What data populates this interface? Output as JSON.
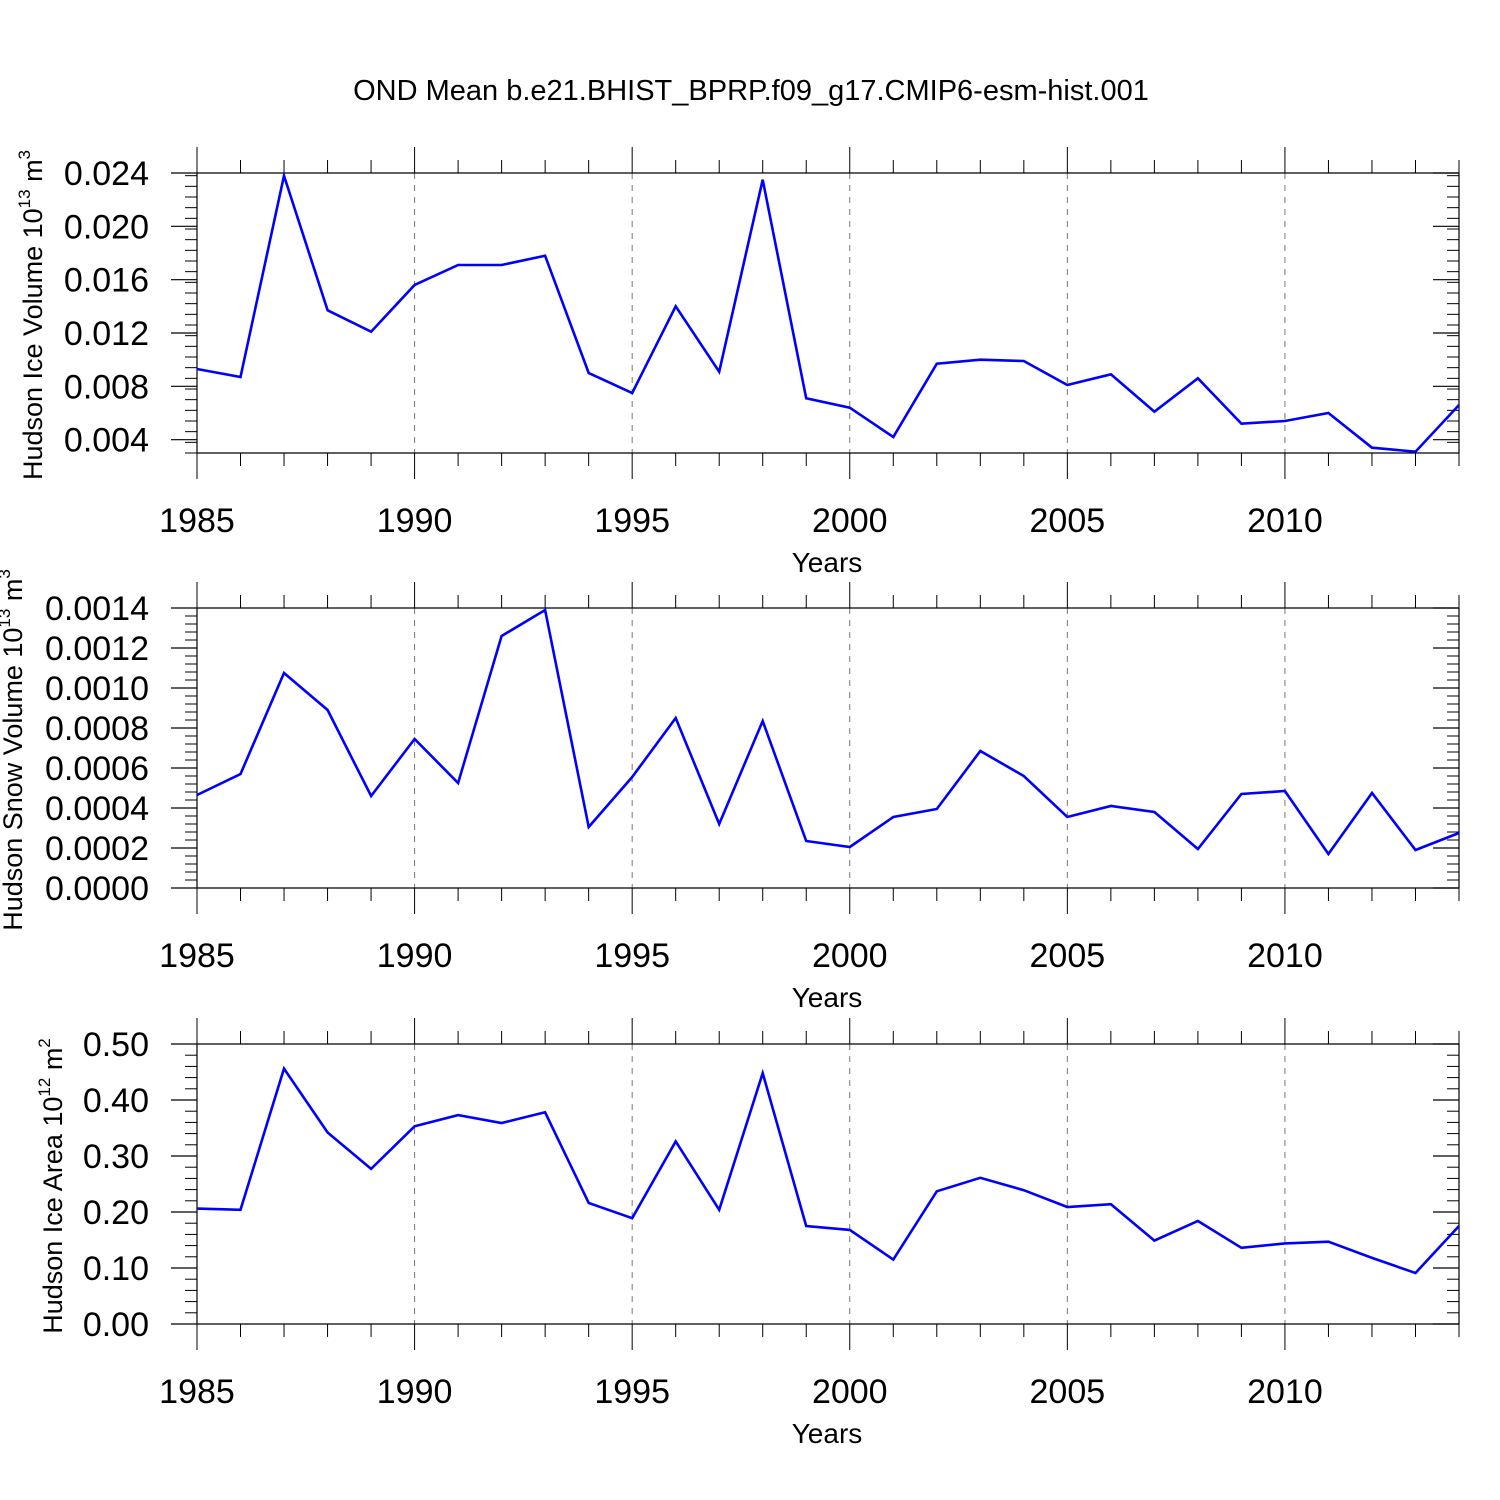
{
  "figure": {
    "title": "OND Mean b.e21.BHIST_BPRP.f09_g17.CMIP6-esm-hist.001"
  },
  "chart_data": [
    {
      "type": "line",
      "xlabel": "Years",
      "ylabel": {
        "text": "Hudson Ice Volume 10",
        "sup": "13",
        "unit": " m",
        "unit_sup": "3"
      },
      "xlim": [
        1985,
        2014
      ],
      "ylim": [
        0.003,
        0.024
      ],
      "xticks": [
        1985,
        1990,
        1995,
        2000,
        2005,
        2010
      ],
      "xtick_labels": [
        "1985",
        "1990",
        "1995",
        "2000",
        "2005",
        "2010"
      ],
      "yticks": [
        0.004,
        0.008,
        0.012,
        0.016,
        0.02,
        0.024
      ],
      "ytick_labels": [
        "0.004",
        "0.008",
        "0.012",
        "0.016",
        "0.020",
        "0.024"
      ],
      "grid": "vertical dashed at major x ticks",
      "color": "#0000ff",
      "x": [
        1985,
        1986,
        1987,
        1988,
        1989,
        1990,
        1991,
        1992,
        1993,
        1994,
        1995,
        1996,
        1997,
        1998,
        1999,
        2000,
        2001,
        2002,
        2003,
        2004,
        2005,
        2006,
        2007,
        2008,
        2009,
        2010,
        2011,
        2012,
        2013,
        2014
      ],
      "values": [
        0.0093,
        0.0087,
        0.0238,
        0.0137,
        0.0121,
        0.0156,
        0.0171,
        0.0171,
        0.0178,
        0.009,
        0.0075,
        0.014,
        0.0091,
        0.0235,
        0.0071,
        0.0064,
        0.0042,
        0.0097,
        0.01,
        0.0099,
        0.0081,
        0.0089,
        0.0061,
        0.0086,
        0.0052,
        0.0054,
        0.006,
        0.0034,
        0.0031,
        0.0066
      ]
    },
    {
      "type": "line",
      "xlabel": "Years",
      "ylabel": {
        "text": "Hudson Snow Volume 10",
        "sup": "13",
        "unit": " m",
        "unit_sup": "3"
      },
      "xlim": [
        1985,
        2014
      ],
      "ylim": [
        0.0,
        0.0014
      ],
      "xticks": [
        1985,
        1990,
        1995,
        2000,
        2005,
        2010
      ],
      "xtick_labels": [
        "1985",
        "1990",
        "1995",
        "2000",
        "2005",
        "2010"
      ],
      "yticks": [
        0.0,
        0.0002,
        0.0004,
        0.0006,
        0.0008,
        0.001,
        0.0012,
        0.0014
      ],
      "ytick_labels": [
        "0.0000",
        "0.0002",
        "0.0004",
        "0.0006",
        "0.0008",
        "0.0010",
        "0.0012",
        "0.0014"
      ],
      "grid": "vertical dashed at major x ticks",
      "color": "#0000ff",
      "x": [
        1985,
        1986,
        1987,
        1988,
        1989,
        1990,
        1991,
        1992,
        1993,
        1994,
        1995,
        1996,
        1997,
        1998,
        1999,
        2000,
        2001,
        2002,
        2003,
        2004,
        2005,
        2006,
        2007,
        2008,
        2009,
        2010,
        2011,
        2012,
        2013,
        2014
      ],
      "values": [
        0.000465,
        0.00057,
        0.001075,
        0.00089,
        0.00046,
        0.000745,
        0.000525,
        0.00126,
        0.00139,
        0.000305,
        0.000555,
        0.00085,
        0.00032,
        0.000835,
        0.000235,
        0.000205,
        0.000355,
        0.000395,
        0.000685,
        0.00056,
        0.000355,
        0.00041,
        0.00038,
        0.000195,
        0.00047,
        0.000485,
        0.00017,
        0.000475,
        0.00019,
        0.000275
      ]
    },
    {
      "type": "line",
      "xlabel": "Years",
      "ylabel": {
        "text": "Hudson Ice Area 10",
        "sup": "12",
        "unit": " m",
        "unit_sup": "2"
      },
      "xlim": [
        1985,
        2014
      ],
      "ylim": [
        0.0,
        0.5
      ],
      "xticks": [
        1985,
        1990,
        1995,
        2000,
        2005,
        2010
      ],
      "xtick_labels": [
        "1985",
        "1990",
        "1995",
        "2000",
        "2005",
        "2010"
      ],
      "yticks": [
        0.0,
        0.1,
        0.2,
        0.3,
        0.4,
        0.5
      ],
      "ytick_labels": [
        "0.00",
        "0.10",
        "0.20",
        "0.30",
        "0.40",
        "0.50"
      ],
      "grid": "vertical dashed at major x ticks",
      "color": "#0000ff",
      "x": [
        1985,
        1986,
        1987,
        1988,
        1989,
        1990,
        1991,
        1992,
        1993,
        1994,
        1995,
        1996,
        1997,
        1998,
        1999,
        2000,
        2001,
        2002,
        2003,
        2004,
        2005,
        2006,
        2007,
        2008,
        2009,
        2010,
        2011,
        2012,
        2013,
        2014
      ],
      "values": [
        0.206,
        0.204,
        0.456,
        0.342,
        0.277,
        0.353,
        0.373,
        0.359,
        0.378,
        0.216,
        0.189,
        0.326,
        0.204,
        0.448,
        0.175,
        0.168,
        0.115,
        0.237,
        0.261,
        0.239,
        0.209,
        0.214,
        0.149,
        0.184,
        0.136,
        0.144,
        0.147,
        0.118,
        0.091,
        0.175
      ]
    }
  ]
}
